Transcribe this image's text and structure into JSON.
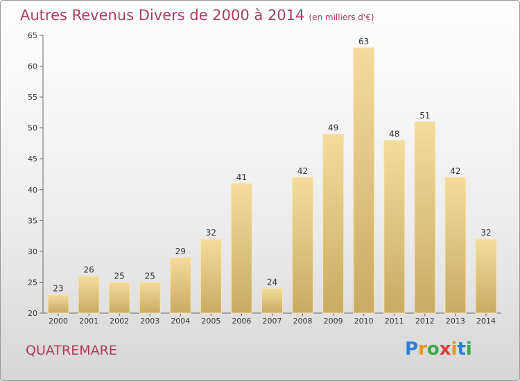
{
  "title": "Autres Revenus Divers de 2000 à 2014",
  "unit": "(en milliers d'€)",
  "commune": "QUATREMARE",
  "logo": {
    "text": "Proxiti",
    "letter_colors": [
      "#2b7fd4",
      "#e8931c",
      "#3aa84a",
      "#e23b3b",
      "#e8931c",
      "#2b7fd4",
      "#3aa84a"
    ]
  },
  "colors": {
    "bar_light": "#f4dc9c",
    "bar_dark": "#c9ab62",
    "title": "#b03a5a"
  },
  "chart_data": {
    "type": "bar",
    "categories": [
      "2000",
      "2001",
      "2002",
      "2003",
      "2004",
      "2005",
      "2006",
      "2007",
      "2008",
      "2009",
      "2010",
      "2011",
      "2012",
      "2013",
      "2014"
    ],
    "values": [
      23,
      26,
      25,
      25,
      29,
      32,
      41,
      24,
      42,
      49,
      63,
      48,
      51,
      42,
      32
    ],
    "ylim": [
      20,
      65
    ],
    "yticks": [
      20,
      25,
      30,
      35,
      40,
      45,
      50,
      55,
      60,
      65
    ],
    "grid": false,
    "legend": "none"
  }
}
